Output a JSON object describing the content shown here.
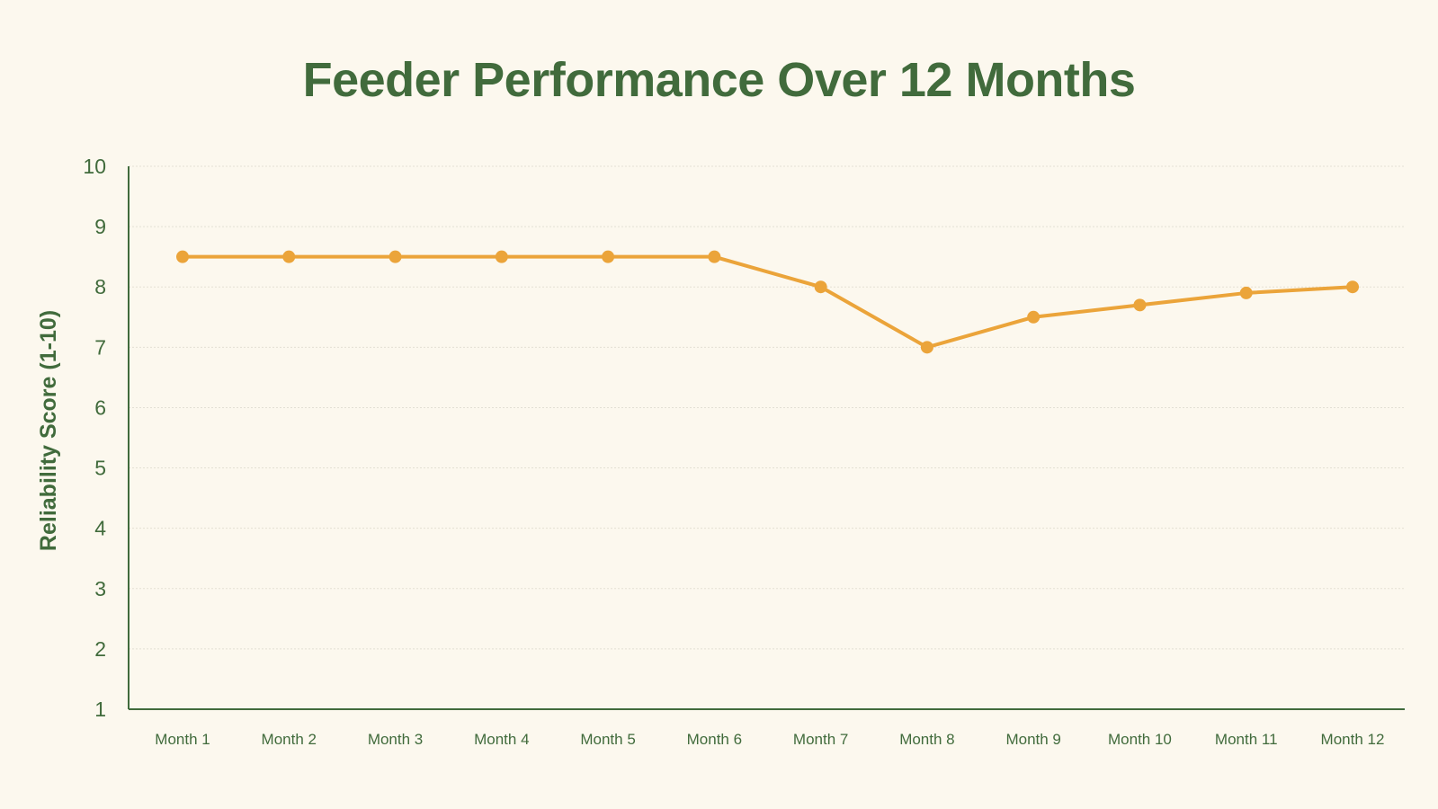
{
  "chart_data": {
    "type": "line",
    "title": "Feeder Performance Over 12 Months",
    "xlabel": "",
    "ylabel": "Reliability Score (1-10)",
    "categories": [
      "Month 1",
      "Month 2",
      "Month 3",
      "Month 4",
      "Month 5",
      "Month 6",
      "Month 7",
      "Month 8",
      "Month 9",
      "Month 10",
      "Month 11",
      "Month 12"
    ],
    "series": [
      {
        "values": [
          8.5,
          8.5,
          8.5,
          8.5,
          8.5,
          8.5,
          8.0,
          7.0,
          7.5,
          7.7,
          7.9,
          8.0
        ]
      }
    ],
    "ylim": [
      1,
      10
    ],
    "yticks": [
      "1",
      "2",
      "3",
      "4",
      "5",
      "6",
      "7",
      "8",
      "9",
      "10"
    ],
    "grid": true,
    "colors": {
      "line": "#eba43a",
      "text": "#416b3c",
      "axis": "#416b3c",
      "grid": "#e3e0d4",
      "background": "#fcf8ee"
    }
  }
}
